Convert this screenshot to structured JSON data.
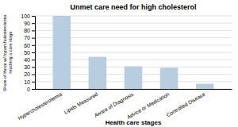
{
  "chart_data": {
    "type": "bar",
    "title": "Unmet care need for high cholesterol",
    "categories": [
      "Hypercholesterolemia",
      "Lipids Measured",
      "Aware of Diagnosis",
      "Advice or Medication",
      "Controlled Disease"
    ],
    "values": [
      100,
      44,
      31,
      29,
      7
    ],
    "color": "#b8cde0",
    "xlabel": "Health care stages",
    "ylabel": "Share of those w/ hypercholesterolemia\nreaching a care stage",
    "ylim": [
      0,
      100
    ],
    "yticks": [
      0,
      10,
      20,
      30,
      40,
      50,
      60,
      70,
      80,
      90,
      100
    ],
    "grid": true
  }
}
